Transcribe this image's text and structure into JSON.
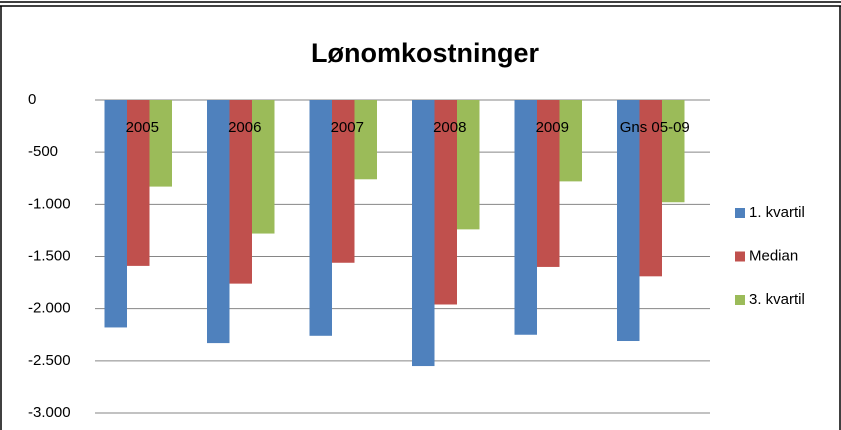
{
  "chart_data": {
    "type": "bar",
    "title": "Lønomkostninger",
    "categories": [
      "2005",
      "2006",
      "2007",
      "2008",
      "2009",
      "Gns 05-09"
    ],
    "series": [
      {
        "name": "1. kvartil",
        "color": "#4f81bd",
        "values": [
          -2180,
          -2330,
          -2260,
          -2550,
          -2250,
          -2310
        ]
      },
      {
        "name": "Median",
        "color": "#c0504d",
        "values": [
          -1590,
          -1760,
          -1560,
          -1960,
          -1600,
          -1690
        ]
      },
      {
        "name": "3. kvartil",
        "color": "#9bbb59",
        "values": [
          -830,
          -1280,
          -760,
          -1240,
          -780,
          -980
        ]
      }
    ],
    "ylim": [
      -3000,
      0
    ],
    "yticks": [
      0,
      -500,
      {
        "value": -1000,
        "label": "-1.000"
      },
      {
        "value": -1500,
        "label": "-1.500"
      },
      {
        "value": -2000,
        "label": "-2.000"
      },
      {
        "value": -2500,
        "label": "-2.500"
      },
      {
        "value": -3000,
        "label": "-3.000"
      }
    ],
    "grid": true,
    "legend": "right"
  }
}
